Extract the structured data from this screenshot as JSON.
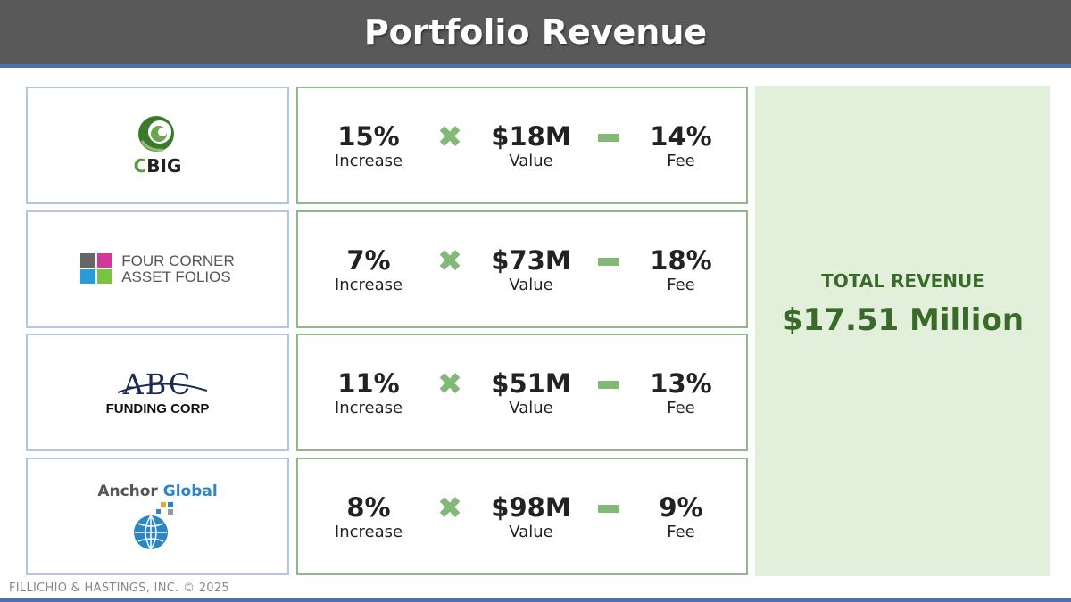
{
  "header": {
    "title": "Portfolio Revenue"
  },
  "rows": [
    {
      "logo": {
        "name": "CBIG",
        "initial": "C",
        "rest": "BIG"
      },
      "increase_value": "15%",
      "increase_label": "Increase",
      "value_value": "$18M",
      "value_label": "Value",
      "fee_value": "14%",
      "fee_label": "Fee"
    },
    {
      "logo": {
        "line1": "FOUR CORNER",
        "line2": "ASSET FOLIOS"
      },
      "increase_value": "7%",
      "increase_label": "Increase",
      "value_value": "$73M",
      "value_label": "Value",
      "fee_value": "18%",
      "fee_label": "Fee"
    },
    {
      "logo": {
        "mark": "ABC",
        "sub": "FUNDING CORP"
      },
      "increase_value": "11%",
      "increase_label": "Increase",
      "value_value": "$51M",
      "value_label": "Value",
      "fee_value": "13%",
      "fee_label": "Fee"
    },
    {
      "logo": {
        "word1": "Anchor",
        "word2": "Global"
      },
      "increase_value": "8%",
      "increase_label": "Increase",
      "value_value": "$98M",
      "value_label": "Value",
      "fee_value": "9%",
      "fee_label": "Fee"
    }
  ],
  "operators": {
    "multiply": "✖",
    "minus": "−"
  },
  "total": {
    "label": "TOTAL REVENUE",
    "value": "$17.51 Million"
  },
  "footer": {
    "text": "FILLICHIO & HASTINGS, INC. © 2025"
  },
  "colors": {
    "header_bg": "#595959",
    "accent_blue": "#4a6fb5",
    "green": "#82b977",
    "panel_bg": "#e2efda",
    "total_text": "#3a6a2a"
  }
}
